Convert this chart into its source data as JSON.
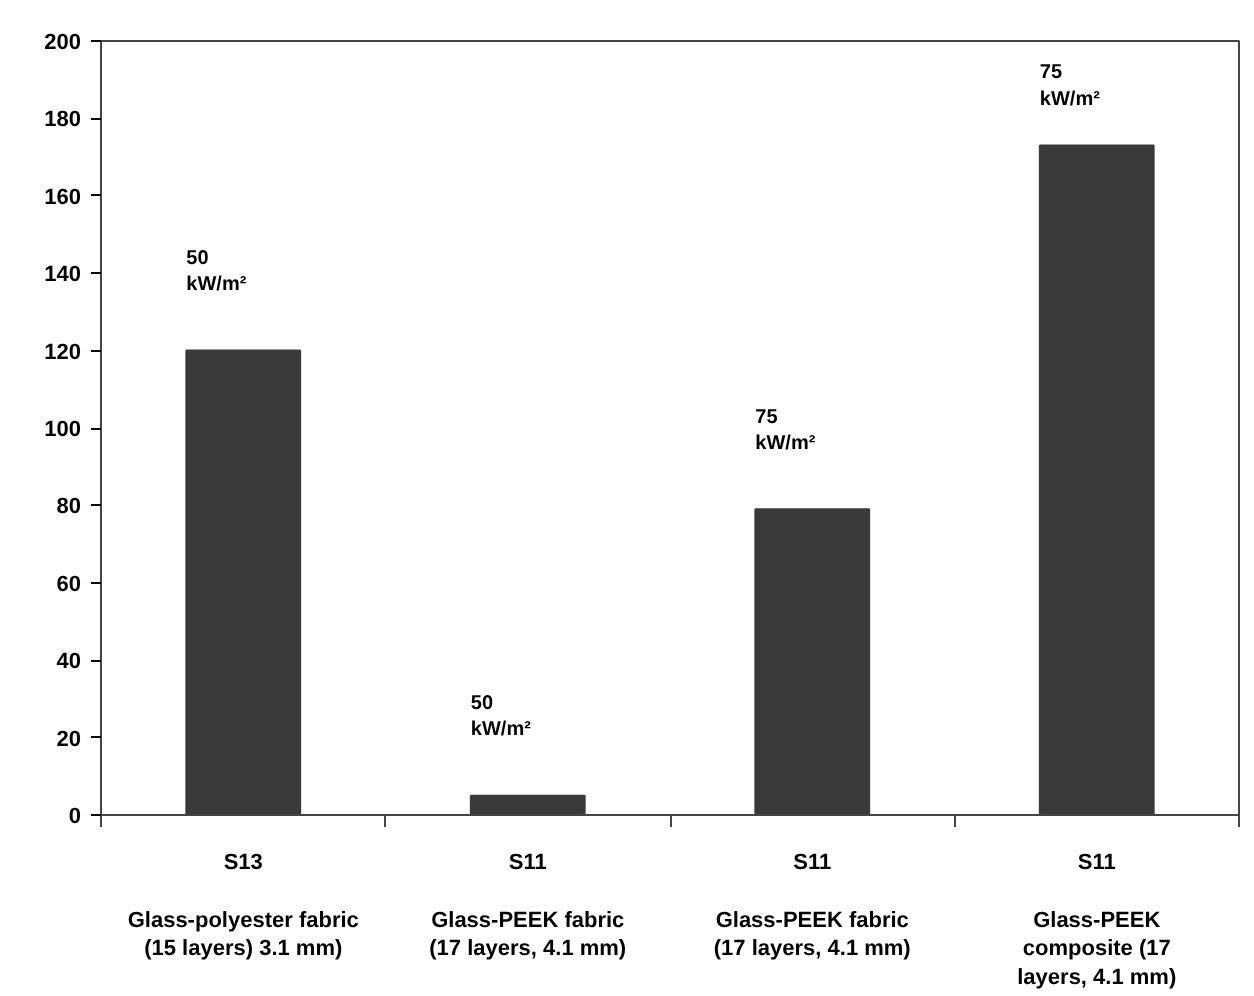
{
  "chart_data": {
    "type": "bar",
    "categories": [
      "S13\n\nGlass-polyester fabric\n(15 layers) 3.1 mm)",
      "S11\n\nGlass-PEEK fabric\n(17 layers, 4.1 mm)",
      "S11\n\nGlass-PEEK fabric\n(17 layers, 4.1 mm)",
      "S11\n\nGlass-PEEK\ncomposite (17\nlayers, 4.1 mm)"
    ],
    "values": [
      120,
      5,
      79,
      173
    ],
    "color": "#3a3a3a",
    "ylim": [
      0,
      200
    ],
    "yticks": [
      0,
      20,
      40,
      60,
      80,
      100,
      120,
      140,
      160,
      180,
      200
    ],
    "grid": false,
    "annotations": [
      "50\nkW/m²",
      "50\nkW/m²",
      "75\nkW/m²",
      "75\nkW/m²"
    ]
  }
}
